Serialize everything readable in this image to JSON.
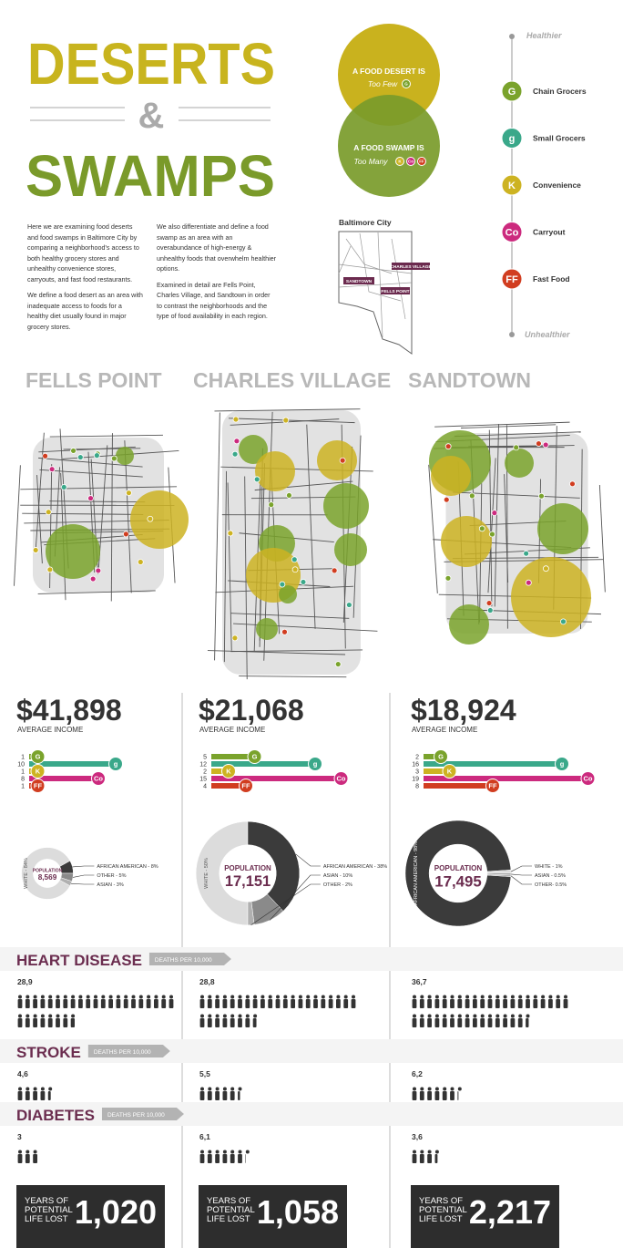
{
  "header": {
    "title_1": "DESERTS",
    "ampersand": "&",
    "title_2": "SWAMPS"
  },
  "intro": {
    "col1": [
      "Here we are examining food deserts and food swamps in Baltimore City by comparing a neighborhood's access to both healthy grocery stores and unhealthy convenience stores, carryouts, and fast food restaurants.",
      "We define a food desert as an area with inadequate access to foods for a healthy diet usually found in major grocery stores."
    ],
    "col2": [
      "We also differentiate and define a food swamp as an area with an overabundance of high-energy & unhealthy foods that overwhelm healthier options.",
      "Examined in detail are Fells Point, Charles Village, and Sandtown in order to contrast the neighborhoods and the type of food availability in each region."
    ]
  },
  "venn": {
    "desert_label": "A FOOD DESERT IS",
    "desert_sub": "Too Few",
    "swamp_label": "A FOOD SWAMP IS",
    "swamp_sub": "Too Many"
  },
  "city_map": {
    "title": "Baltimore City",
    "labels": [
      "CHARLES VILLAGE",
      "SANDTOWN",
      "FELLS POINT"
    ]
  },
  "legend": {
    "top": "Healthier",
    "bottom": "Unhealthier",
    "items": [
      {
        "icon": "G",
        "label": "Chain Grocers",
        "color": "#7aa32c"
      },
      {
        "icon": "g",
        "label": "Small Grocers",
        "color": "#3aa88a"
      },
      {
        "icon": "K",
        "label": "Convenience",
        "color": "#cdb322"
      },
      {
        "icon": "Co",
        "label": "Carryout",
        "color": "#cc2a7e"
      },
      {
        "icon": "FF",
        "label": "Fast Food",
        "color": "#d13d20"
      }
    ]
  },
  "health": [
    {
      "title": "HEART DISEASE",
      "unit": "DEATHS PER 10,000"
    },
    {
      "title": "STROKE",
      "unit": "DEATHS PER 10,000"
    },
    {
      "title": "DIABETES",
      "unit": "DEATHS PER 10,000"
    }
  ],
  "neighborhoods": [
    {
      "name": "FELLS POINT",
      "income": "$41,898",
      "income_label": "AVERAGE INCOME",
      "stores": [
        1,
        10,
        1,
        8,
        1
      ],
      "population_label": "POPULATION",
      "population": {
        "value": 8569,
        "label": "8,569"
      },
      "groups": [
        {
          "label": "WHITE - 84%",
          "value": 84,
          "color": "#dcdcdc"
        },
        {
          "label": "AFRICAN AMERICAN - 8%",
          "value": 8,
          "color": "#3b3b3b"
        },
        {
          "label": "OTHER - 5%",
          "value": 5,
          "color": "#8a8a8a"
        },
        {
          "label": "ASIAN - 3%",
          "value": 3,
          "color": "#b0b0b0"
        }
      ],
      "health": [
        {
          "value": 28.9,
          "label": "28,9"
        },
        {
          "value": 4.6,
          "label": "4,6"
        },
        {
          "value": 3,
          "label": "3"
        }
      ],
      "ypll_label": [
        "YEARS OF",
        "POTENTIAL",
        "LIFE LOST"
      ],
      "ypll": "1,020"
    },
    {
      "name": "CHARLES VILLAGE",
      "income": "$21,068",
      "income_label": "AVERAGE INCOME",
      "stores": [
        5,
        12,
        2,
        15,
        4
      ],
      "population_label": "POPULATION",
      "population": {
        "value": 17151,
        "label": "17,151"
      },
      "groups": [
        {
          "label": "WHITE - 50%",
          "value": 50,
          "color": "#dcdcdc"
        },
        {
          "label": "AFRICAN AMERICAN - 38%",
          "value": 38,
          "color": "#3b3b3b"
        },
        {
          "label": "ASIAN - 10%",
          "value": 10,
          "color": "#8a8a8a"
        },
        {
          "label": "OTHER - 2%",
          "value": 2,
          "color": "#b0b0b0"
        }
      ],
      "health": [
        {
          "value": 28.8,
          "label": "28,8"
        },
        {
          "value": 5.5,
          "label": "5,5"
        },
        {
          "value": 6.1,
          "label": "6,1"
        }
      ],
      "ypll_label": [
        "YEARS OF",
        "POTENTIAL",
        "LIFE LOST"
      ],
      "ypll": "1,058"
    },
    {
      "name": "SANDTOWN",
      "income": "$18,924",
      "income_label": "AVERAGE INCOME",
      "stores": [
        2,
        16,
        3,
        19,
        8
      ],
      "population_label": "POPULATION",
      "population": {
        "value": 17495,
        "label": "17,495"
      },
      "groups": [
        {
          "label": "AFRICAN AMERICAN - 98%",
          "value": 98,
          "color": "#3b3b3b"
        },
        {
          "label": "WHITE - 1%",
          "value": 1,
          "color": "#dcdcdc"
        },
        {
          "label": "ASIAN - 0.5%",
          "value": 0.5,
          "color": "#8a8a8a"
        },
        {
          "label": "OTHER- 0.5%",
          "value": 0.5,
          "color": "#b0b0b0"
        }
      ],
      "health": [
        {
          "value": 36.7,
          "label": "36,7"
        },
        {
          "value": 6.2,
          "label": "6,2"
        },
        {
          "value": 3.6,
          "label": "3,6"
        }
      ],
      "ypll_label": [
        "YEARS OF",
        "POTENTIAL",
        "LIFE LOST"
      ],
      "ypll": "2,217"
    }
  ]
}
